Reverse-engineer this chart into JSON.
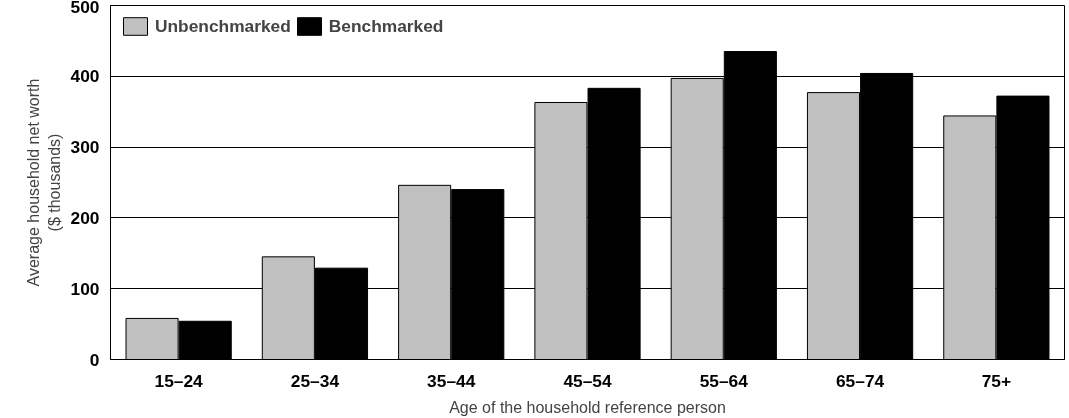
{
  "chart_data": {
    "type": "bar",
    "xlabel": "Age of the household reference person",
    "ylabel": "Average household net worth\n($ thousands)",
    "categories": [
      "15–24",
      "25–34",
      "35–44",
      "45–54",
      "55–64",
      "65–74",
      "75+"
    ],
    "series": [
      {
        "name": "Unbenchmarked",
        "color": "#c0c0c0",
        "values": [
          58,
          145,
          246,
          363,
          397,
          377,
          344
        ]
      },
      {
        "name": "Benchmarked",
        "color": "#000000",
        "values": [
          54,
          129,
          240,
          383,
          435,
          404,
          372
        ]
      }
    ],
    "ylim": [
      0,
      500
    ],
    "yticks": [
      0,
      100,
      200,
      300,
      400,
      500
    ],
    "grid": "y",
    "legend": "top left"
  }
}
